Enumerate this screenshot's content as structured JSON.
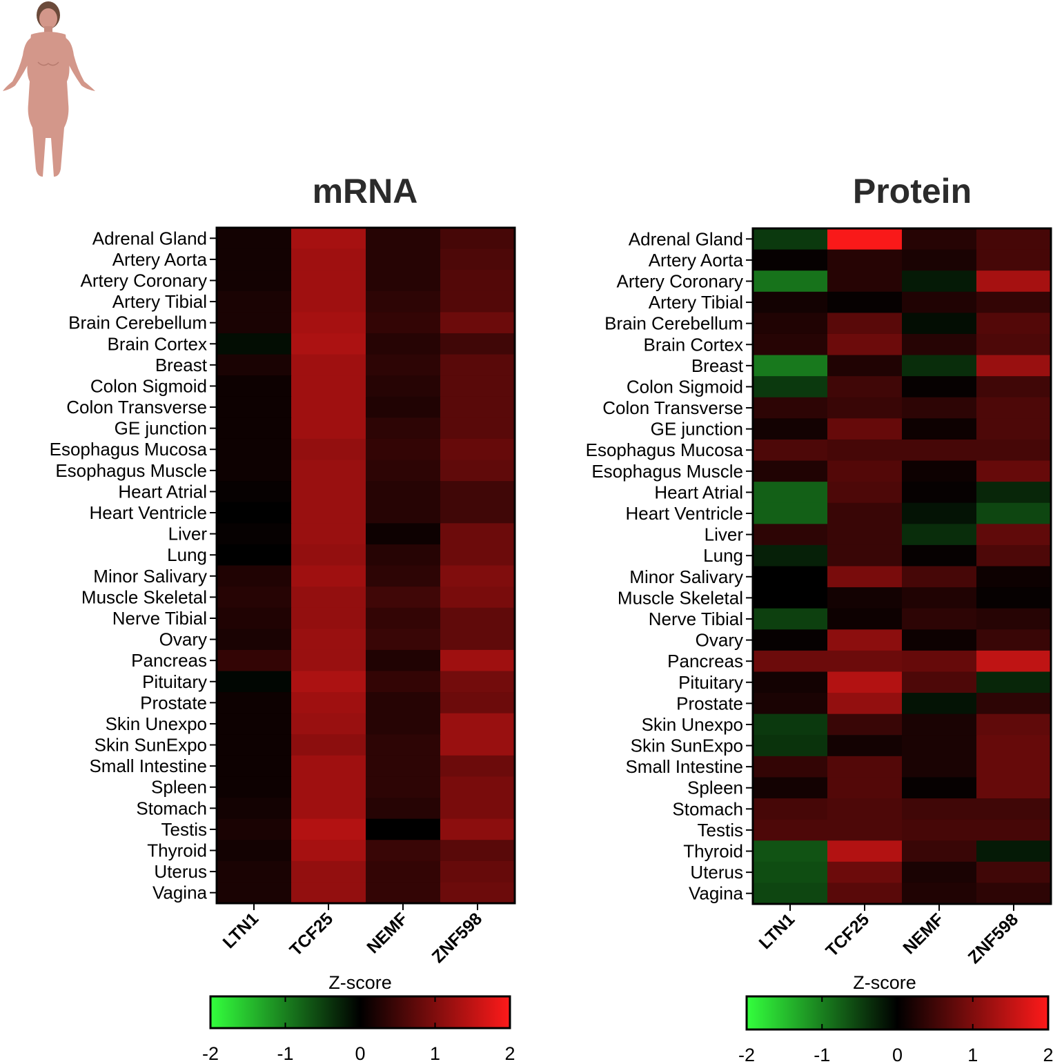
{
  "chart_data": [
    {
      "type": "heatmap",
      "title": "mRNA",
      "columns": [
        "LTN1",
        "TCF25",
        "NEMF",
        "ZNF598"
      ],
      "rows": [
        "Adrenal Gland",
        "Artery Aorta",
        "Artery Coronary",
        "Artery Tibial",
        "Brain Cerebellum",
        "Brain Cortex",
        "Breast",
        "Colon Sigmoid",
        "Colon Transverse",
        "GE junction",
        "Esophagus Mucosa",
        "Esophagus Muscle",
        "Heart Atrial",
        "Heart Ventricle",
        "Liver",
        "Lung",
        "Minor Salivary",
        "Muscle Skeletal",
        "Nerve Tibial",
        "Ovary",
        "Pancreas",
        "Pituitary",
        "Prostate",
        "Skin Unexpo",
        "Skin SunExpo",
        "Small Intestine",
        "Spleen",
        "Stomach",
        "Testis",
        "Thyroid",
        "Uterus",
        "Vagina"
      ],
      "values": [
        [
          0.15,
          1.3,
          0.3,
          0.55
        ],
        [
          0.15,
          1.25,
          0.3,
          0.6
        ],
        [
          0.15,
          1.25,
          0.3,
          0.65
        ],
        [
          0.2,
          1.25,
          0.35,
          0.65
        ],
        [
          0.2,
          1.3,
          0.4,
          0.85
        ],
        [
          -0.1,
          1.35,
          0.3,
          0.5
        ],
        [
          0.2,
          1.25,
          0.35,
          0.7
        ],
        [
          0.1,
          1.25,
          0.3,
          0.7
        ],
        [
          0.1,
          1.25,
          0.25,
          0.7
        ],
        [
          0.1,
          1.25,
          0.35,
          0.7
        ],
        [
          0.1,
          1.15,
          0.4,
          0.8
        ],
        [
          0.1,
          1.2,
          0.35,
          0.75
        ],
        [
          0.05,
          1.2,
          0.3,
          0.5
        ],
        [
          0.0,
          1.2,
          0.3,
          0.5
        ],
        [
          0.05,
          1.2,
          0.1,
          0.85
        ],
        [
          0.0,
          1.15,
          0.3,
          0.85
        ],
        [
          0.25,
          1.25,
          0.35,
          1.0
        ],
        [
          0.3,
          1.15,
          0.5,
          0.95
        ],
        [
          0.25,
          1.15,
          0.4,
          0.75
        ],
        [
          0.2,
          1.2,
          0.45,
          0.75
        ],
        [
          0.4,
          1.2,
          0.25,
          1.25
        ],
        [
          -0.05,
          1.35,
          0.4,
          0.9
        ],
        [
          0.1,
          1.25,
          0.3,
          0.85
        ],
        [
          0.1,
          1.2,
          0.3,
          1.2
        ],
        [
          0.1,
          1.1,
          0.35,
          1.2
        ],
        [
          0.1,
          1.25,
          0.35,
          0.85
        ],
        [
          0.1,
          1.25,
          0.35,
          0.95
        ],
        [
          0.15,
          1.25,
          0.3,
          0.95
        ],
        [
          0.2,
          1.4,
          0.0,
          1.1
        ],
        [
          0.15,
          1.3,
          0.45,
          0.7
        ],
        [
          0.2,
          1.15,
          0.4,
          0.8
        ],
        [
          0.2,
          1.15,
          0.4,
          0.85
        ]
      ],
      "colorbar": {
        "label": "Z-score",
        "min": -2,
        "max": 2,
        "ticks": [
          -2,
          -1,
          0,
          1,
          2
        ]
      },
      "colors": {
        "low": "#33ff3d",
        "mid": "#000000",
        "high": "#ff1a1a"
      }
    },
    {
      "type": "heatmap",
      "title": "Protein",
      "columns": [
        "LTN1",
        "TCF25",
        "NEMF",
        "ZNF598"
      ],
      "rows": [
        "Adrenal Gland",
        "Artery Aorta",
        "Artery Coronary",
        "Artery Tibial",
        "Brain Cerebellum",
        "Brain Cortex",
        "Breast",
        "Colon Sigmoid",
        "Colon Transverse",
        "GE junction",
        "Esophagus Mucosa",
        "Esophagus Muscle",
        "Heart Atrial",
        "Heart Ventricle",
        "Liver",
        "Lung",
        "Minor Salivary",
        "Muscle Skeletal",
        "Nerve Tibial",
        "Ovary",
        "Pancreas",
        "Pituitary",
        "Prostate",
        "Skin Unexpo",
        "Skin SunExpo",
        "Small Intestine",
        "Spleen",
        "Stomach",
        "Testis",
        "Thyroid",
        "Uterus",
        "Vagina"
      ],
      "values": [
        [
          -0.45,
          1.95,
          0.3,
          0.55
        ],
        [
          0.05,
          0.3,
          0.2,
          0.55
        ],
        [
          -0.9,
          0.3,
          -0.2,
          1.3
        ],
        [
          0.15,
          0.05,
          0.25,
          0.4
        ],
        [
          0.25,
          0.7,
          -0.1,
          0.65
        ],
        [
          0.3,
          0.85,
          0.3,
          0.6
        ],
        [
          -0.95,
          0.25,
          -0.35,
          1.2
        ],
        [
          -0.45,
          0.5,
          0.05,
          0.5
        ],
        [
          0.35,
          0.45,
          0.35,
          0.6
        ],
        [
          0.15,
          0.8,
          0.1,
          0.6
        ],
        [
          0.6,
          0.55,
          0.55,
          0.55
        ],
        [
          0.25,
          0.65,
          0.1,
          0.8
        ],
        [
          -0.75,
          0.6,
          0.05,
          -0.3
        ],
        [
          -0.75,
          0.45,
          -0.15,
          -0.55
        ],
        [
          0.35,
          0.45,
          -0.35,
          0.75
        ],
        [
          -0.25,
          0.45,
          0.05,
          0.6
        ],
        [
          0.0,
          0.95,
          0.55,
          0.1
        ],
        [
          0.0,
          0.15,
          0.25,
          0.05
        ],
        [
          -0.5,
          0.1,
          0.35,
          0.3
        ],
        [
          0.05,
          1.1,
          0.1,
          0.45
        ],
        [
          0.85,
          0.85,
          0.8,
          1.5
        ],
        [
          0.15,
          1.4,
          0.6,
          -0.3
        ],
        [
          0.2,
          1.15,
          -0.15,
          0.35
        ],
        [
          -0.45,
          0.45,
          0.2,
          0.75
        ],
        [
          -0.4,
          0.15,
          0.2,
          0.8
        ],
        [
          0.4,
          0.65,
          0.2,
          0.8
        ],
        [
          0.15,
          0.65,
          0.05,
          0.8
        ],
        [
          0.55,
          0.6,
          0.5,
          0.5
        ],
        [
          0.6,
          0.6,
          0.55,
          0.55
        ],
        [
          -0.65,
          1.4,
          0.45,
          -0.2
        ],
        [
          -0.6,
          0.85,
          0.2,
          0.5
        ],
        [
          -0.55,
          0.7,
          0.25,
          0.35
        ]
      ],
      "colorbar": {
        "label": "Z-score",
        "min": -2,
        "max": 2,
        "ticks": [
          -2,
          -1,
          0,
          1,
          2
        ]
      },
      "colors": {
        "low": "#33ff3d",
        "mid": "#000000",
        "high": "#ff1a1a"
      }
    }
  ],
  "illustration": {
    "icon": "human-body-icon",
    "skin_color": "#d3978a",
    "hair_color": "#6b4a3a"
  }
}
